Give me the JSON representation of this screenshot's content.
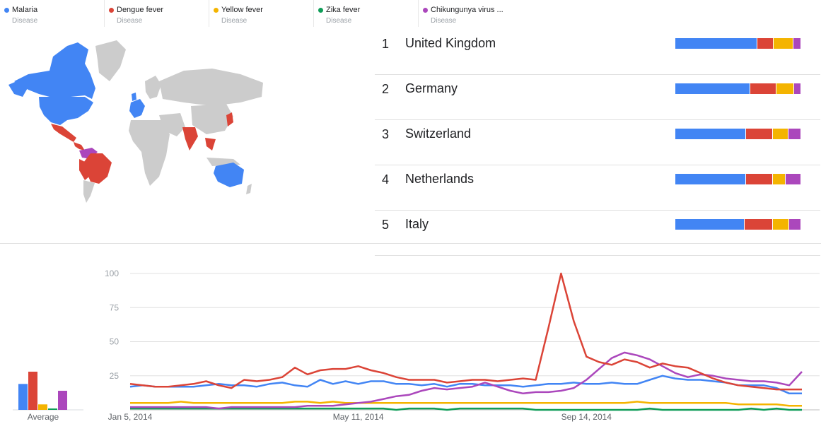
{
  "legend": [
    {
      "name": "Malaria",
      "type": "Disease",
      "color": "#4285f4"
    },
    {
      "name": "Dengue fever",
      "type": "Disease",
      "color": "#db4437"
    },
    {
      "name": "Yellow fever",
      "type": "Disease",
      "color": "#f4b400"
    },
    {
      "name": "Zika fever",
      "type": "Disease",
      "color": "#0f9d58"
    },
    {
      "name": "Chikungunya virus ...",
      "type": "Disease",
      "color": "#ab47bc"
    }
  ],
  "ranking": [
    {
      "rank": "1",
      "name": "United Kingdom",
      "shares": [
        66,
        13,
        15,
        6
      ]
    },
    {
      "rank": "2",
      "name": "Germany",
      "shares": [
        61,
        21,
        14,
        5
      ]
    },
    {
      "rank": "3",
      "name": "Switzerland",
      "shares": [
        57,
        21,
        12,
        10
      ]
    },
    {
      "rank": "4",
      "name": "Netherlands",
      "shares": [
        57,
        21,
        10,
        12
      ]
    },
    {
      "rank": "5",
      "name": "Italy",
      "shares": [
        56,
        22,
        13,
        9
      ]
    }
  ],
  "chart_data": [
    {
      "type": "bar",
      "xlabel": "Average",
      "categories": [
        "Malaria",
        "Dengue fever",
        "Yellow fever",
        "Zika fever",
        "Chikungunya virus ..."
      ],
      "values": [
        19,
        28,
        4,
        1,
        14
      ],
      "colors": [
        "#4285f4",
        "#db4437",
        "#f4b400",
        "#0f9d58",
        "#ab47bc"
      ],
      "ylim": [
        0,
        100
      ]
    },
    {
      "type": "line",
      "ylim": [
        0,
        100
      ],
      "yticks": [
        "25",
        "50",
        "75",
        "100"
      ],
      "ytick_values": [
        25,
        50,
        75,
        100
      ],
      "x_start": "2014-01-05",
      "x_step_days": 7,
      "x_tick_labels": [
        "Jan 5, 2014",
        "May 11, 2014",
        "Sep 14, 2014"
      ],
      "x_tick_index": [
        0,
        18,
        36
      ],
      "grid": true,
      "series": [
        {
          "name": "Malaria",
          "color": "#4285f4",
          "values": [
            17,
            18,
            17,
            17,
            17,
            17,
            18,
            19,
            18,
            18,
            17,
            19,
            20,
            18,
            17,
            22,
            19,
            21,
            19,
            21,
            21,
            19,
            19,
            18,
            19,
            17,
            19,
            19,
            18,
            18,
            18,
            17,
            18,
            19,
            19,
            20,
            19,
            19,
            20,
            19,
            19,
            22,
            25,
            23,
            22,
            22,
            21,
            20,
            18,
            18,
            18,
            16,
            12,
            12
          ]
        },
        {
          "name": "Dengue fever",
          "color": "#db4437",
          "values": [
            19,
            18,
            17,
            17,
            18,
            19,
            21,
            18,
            16,
            22,
            21,
            22,
            24,
            31,
            26,
            29,
            30,
            30,
            32,
            29,
            27,
            24,
            22,
            22,
            22,
            20,
            21,
            22,
            22,
            21,
            22,
            23,
            22,
            60,
            100,
            65,
            39,
            35,
            33,
            37,
            35,
            31,
            34,
            32,
            31,
            27,
            23,
            20,
            18,
            17,
            16,
            15,
            15,
            15
          ]
        },
        {
          "name": "Yellow fever",
          "color": "#f4b400",
          "values": [
            5,
            5,
            5,
            5,
            6,
            5,
            5,
            5,
            5,
            5,
            5,
            5,
            5,
            6,
            6,
            5,
            6,
            5,
            5,
            5,
            5,
            5,
            5,
            5,
            5,
            5,
            5,
            5,
            5,
            5,
            5,
            5,
            5,
            5,
            5,
            5,
            5,
            5,
            5,
            5,
            6,
            5,
            5,
            5,
            5,
            5,
            5,
            5,
            4,
            4,
            4,
            4,
            3,
            3
          ]
        },
        {
          "name": "Zika fever",
          "color": "#0f9d58",
          "values": [
            1,
            1,
            1,
            1,
            1,
            1,
            1,
            1,
            1,
            1,
            1,
            1,
            1,
            1,
            1,
            1,
            1,
            1,
            1,
            1,
            1,
            0,
            1,
            1,
            1,
            0,
            1,
            1,
            1,
            1,
            1,
            1,
            0,
            0,
            0,
            0,
            0,
            0,
            0,
            0,
            0,
            1,
            0,
            0,
            0,
            0,
            0,
            0,
            0,
            1,
            0,
            1,
            0,
            0
          ]
        },
        {
          "name": "Chikungunya virus ...",
          "color": "#ab47bc",
          "values": [
            2,
            2,
            2,
            2,
            2,
            2,
            2,
            1,
            2,
            2,
            2,
            2,
            2,
            2,
            3,
            3,
            3,
            4,
            5,
            6,
            8,
            10,
            11,
            14,
            16,
            15,
            16,
            17,
            20,
            17,
            14,
            12,
            13,
            13,
            14,
            16,
            22,
            30,
            38,
            42,
            40,
            37,
            32,
            27,
            24,
            26,
            25,
            23,
            22,
            21,
            21,
            20,
            18,
            28
          ]
        }
      ]
    }
  ]
}
